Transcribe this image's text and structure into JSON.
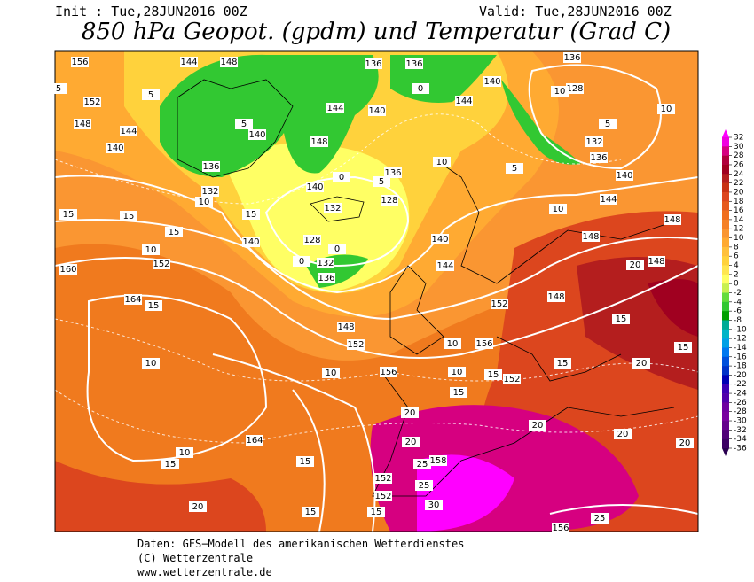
{
  "header": {
    "init": "Init : Tue,28JUN2016 00Z",
    "valid": "Valid: Tue,28JUN2016 00Z",
    "title": "850 hPa Geopot. (gpdm) und Temperatur (Grad C)"
  },
  "colorbar": {
    "levels": [
      32,
      30,
      28,
      26,
      24,
      22,
      20,
      18,
      16,
      14,
      12,
      10,
      8,
      6,
      4,
      2,
      0,
      -2,
      -4,
      -6,
      -8,
      -10,
      -12,
      -14,
      -16,
      -18,
      -20,
      -22,
      -24,
      -26,
      -28,
      -30,
      -32,
      -34,
      -36
    ],
    "colors": [
      "#ff00ff",
      "#f000e0",
      "#d60080",
      "#b0003c",
      "#a00020",
      "#b41e1e",
      "#c83214",
      "#dc461e",
      "#e65a1e",
      "#f06e1e",
      "#f58228",
      "#fa9632",
      "#ffaa32",
      "#ffc03c",
      "#ffd23c",
      "#ffe650",
      "#ffff64",
      "#c8f050",
      "#64dc3c",
      "#32c832",
      "#00a000",
      "#00aa96",
      "#00b4c8",
      "#00a0e6",
      "#0078f0",
      "#0050dc",
      "#0032c8",
      "#0000b4",
      "#3c00b4",
      "#5000aa",
      "#6e00a0",
      "#7800a0",
      "#64008c",
      "#500078",
      "#3c0064",
      "#2a0050"
    ]
  },
  "contour_labels": [
    "156",
    "144",
    "148",
    "136",
    "136",
    "136",
    "5",
    "5",
    "152",
    "128",
    "10",
    "140",
    "144",
    "144",
    "140",
    "0",
    "148",
    "144",
    "5",
    "140",
    "10",
    "5",
    "132",
    "140",
    "136",
    "148",
    "136",
    "5",
    "140",
    "0",
    "10",
    "5",
    "136",
    "140",
    "132",
    "10",
    "128",
    "132",
    "15",
    "15",
    "10",
    "144",
    "15",
    "148",
    "140",
    "128",
    "0",
    "140",
    "148",
    "15",
    "10",
    "152",
    "0",
    "132",
    "136",
    "144",
    "20",
    "148",
    "160",
    "164",
    "15",
    "152",
    "148",
    "15",
    "148",
    "152",
    "10",
    "156",
    "10",
    "10",
    "156",
    "10",
    "15",
    "152",
    "15",
    "20",
    "15",
    "15",
    "20",
    "164",
    "10",
    "15",
    "20",
    "25",
    "158",
    "20",
    "20",
    "20",
    "15",
    "152",
    "25",
    "152",
    "30",
    "15",
    "15",
    "20",
    "156",
    "25"
  ],
  "footer": [
    "Daten: GFS−Modell des amerikanischen Wetterdienstes",
    "(C) Wetterzentrale",
    "www.wetterzentrale.de"
  ]
}
